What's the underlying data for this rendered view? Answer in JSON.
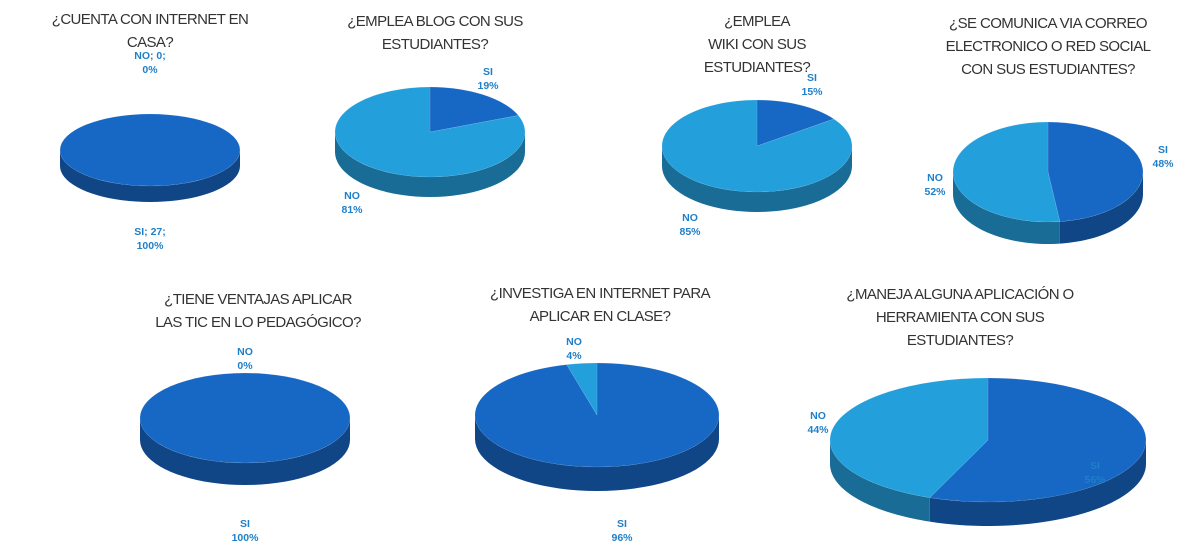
{
  "chart_data": [
    {
      "type": "pie",
      "title": [
        "¿CUENTA CON INTERNET  EN",
        "CASA?"
      ],
      "categories": [
        "SI; 27;",
        "NO; 0;"
      ],
      "values": [
        100,
        0
      ],
      "value_labels": [
        "100%",
        "0%"
      ],
      "colors": [
        "#1767c4",
        "#239fdc"
      ]
    },
    {
      "type": "pie",
      "title": [
        "¿EMPLEA BLOG CON SUS",
        "ESTUDIANTES?"
      ],
      "categories": [
        "SI",
        "NO"
      ],
      "values": [
        19,
        81
      ],
      "value_labels": [
        "19%",
        "81%"
      ],
      "colors": [
        "#1767c4",
        "#239fdc"
      ]
    },
    {
      "type": "pie",
      "title": [
        "¿EMPLEA",
        "WIKI CON SUS",
        "ESTUDIANTES?"
      ],
      "categories": [
        "SI",
        "NO"
      ],
      "values": [
        15,
        85
      ],
      "value_labels": [
        "15%",
        "85%"
      ],
      "colors": [
        "#1767c4",
        "#239fdc"
      ]
    },
    {
      "type": "pie",
      "title": [
        "¿SE COMUNICA VIA CORREO",
        "ELECTRONICO O RED SOCIAL",
        "CON SUS ESTUDIANTES?"
      ],
      "categories": [
        "SI",
        "NO"
      ],
      "values": [
        48,
        52
      ],
      "value_labels": [
        "48%",
        "52%"
      ],
      "colors": [
        "#1767c4",
        "#239fdc"
      ]
    },
    {
      "type": "pie",
      "title": [
        "¿TIENE VENTAJAS APLICAR",
        "LAS TIC EN LO PEDAGÓGICO?"
      ],
      "categories": [
        "SI",
        "NO"
      ],
      "values": [
        100,
        0
      ],
      "value_labels": [
        "100%",
        "0%"
      ],
      "colors": [
        "#1767c4",
        "#239fdc"
      ]
    },
    {
      "type": "pie",
      "title": [
        "¿INVESTIGA EN INTERNET PARA",
        "APLICAR EN CLASE?"
      ],
      "categories": [
        "SI",
        "NO"
      ],
      "values": [
        96,
        4
      ],
      "value_labels": [
        "96%",
        "4%"
      ],
      "colors": [
        "#1767c4",
        "#239fdc"
      ]
    },
    {
      "type": "pie",
      "title": [
        "¿MANEJA ALGUNA APLICACIÓN O",
        "HERRAMIENTA CON SUS",
        "ESTUDIANTES?"
      ],
      "categories": [
        "SI",
        "NO"
      ],
      "values": [
        56,
        44
      ],
      "value_labels": [
        "56%",
        "44%"
      ],
      "colors": [
        "#1767c4",
        "#239fdc"
      ]
    }
  ]
}
